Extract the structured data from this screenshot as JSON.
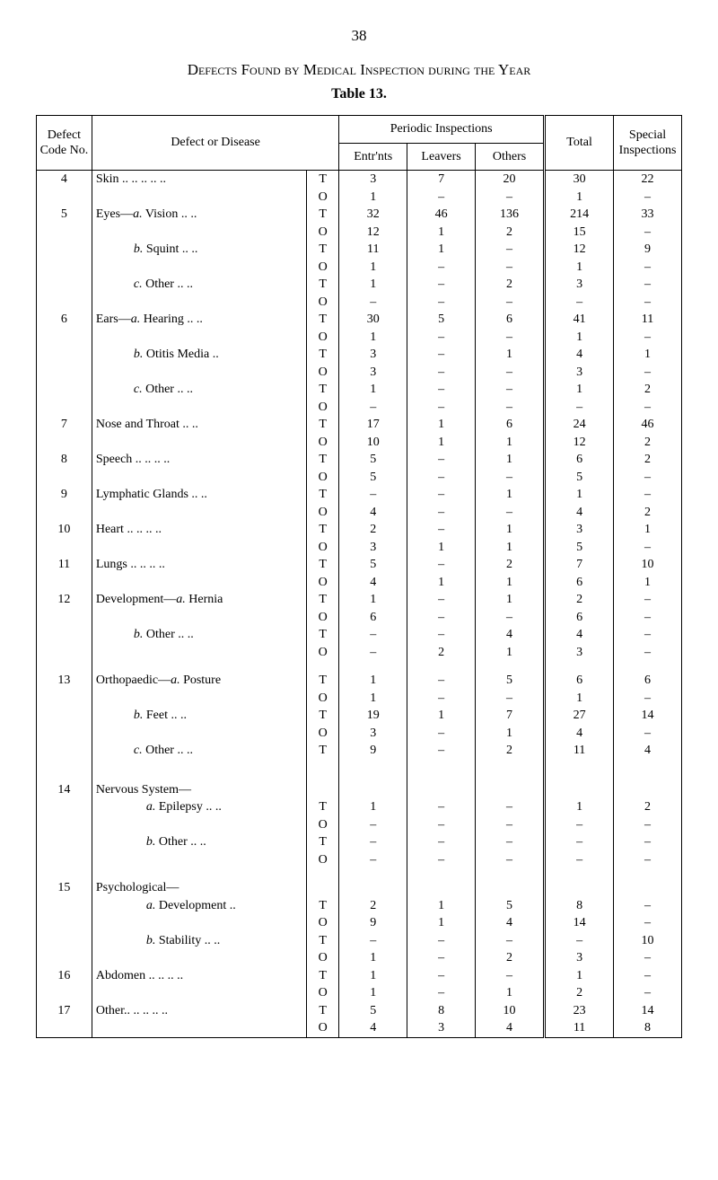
{
  "page_number": "38",
  "title": "Defects Found by Medical Inspection during the Year",
  "table_label": "Table 13.",
  "headers": {
    "code": "Defect Code No.",
    "disease": "Defect or Disease",
    "periodic": "Periodic Inspections",
    "entrnts": "Entr'nts",
    "leavers": "Leavers",
    "others": "Others",
    "total": "Total",
    "special": "Special Inspec­tions"
  },
  "rows": [
    {
      "code": "4",
      "label": "Skin ..  ..  ..  ..  ..",
      "to": "T",
      "e": "3",
      "l": "7",
      "o": "20",
      "t": "30",
      "s": "22"
    },
    {
      "code": "",
      "label": "",
      "to": "O",
      "e": "1",
      "l": "–",
      "o": "–",
      "t": "1",
      "s": "–"
    },
    {
      "code": "5",
      "label": "Eyes—a.  Vision    ..  ..",
      "to": "T",
      "e": "32",
      "l": "46",
      "o": "136",
      "t": "214",
      "s": "33",
      "ital_a": true
    },
    {
      "code": "",
      "label": "",
      "to": "O",
      "e": "12",
      "l": "1",
      "o": "2",
      "t": "15",
      "s": "–"
    },
    {
      "code": "",
      "label": "b.  Squint    ..   ..",
      "indent": 1,
      "to": "T",
      "e": "11",
      "l": "1",
      "o": "–",
      "t": "12",
      "s": "9",
      "ital_b": true
    },
    {
      "code": "",
      "label": "",
      "to": "O",
      "e": "1",
      "l": "–",
      "o": "–",
      "t": "1",
      "s": "–"
    },
    {
      "code": "",
      "label": "c.  Other     ..   ..",
      "indent": 1,
      "to": "T",
      "e": "1",
      "l": "–",
      "o": "2",
      "t": "3",
      "s": "–",
      "ital_c": true
    },
    {
      "code": "",
      "label": "",
      "to": "O",
      "e": "–",
      "l": "–",
      "o": "–",
      "t": "–",
      "s": "–"
    },
    {
      "code": "6",
      "label": "Ears—a.   Hearing ..   ..",
      "to": "T",
      "e": "30",
      "l": "5",
      "o": "6",
      "t": "41",
      "s": "11",
      "ital_a": true
    },
    {
      "code": "",
      "label": "",
      "to": "O",
      "e": "1",
      "l": "–",
      "o": "–",
      "t": "1",
      "s": "–"
    },
    {
      "code": "",
      "label": "b.  Otitis Media  ..",
      "indent": 1,
      "to": "T",
      "e": "3",
      "l": "–",
      "o": "1",
      "t": "4",
      "s": "1",
      "ital_b": true
    },
    {
      "code": "",
      "label": "",
      "to": "O",
      "e": "3",
      "l": "–",
      "o": "–",
      "t": "3",
      "s": "–"
    },
    {
      "code": "",
      "label": "c.  Other     ..   ..",
      "indent": 1,
      "to": "T",
      "e": "1",
      "l": "–",
      "o": "–",
      "t": "1",
      "s": "2",
      "ital_c": true
    },
    {
      "code": "",
      "label": "",
      "to": "O",
      "e": "–",
      "l": "–",
      "o": "–",
      "t": "–",
      "s": "–"
    },
    {
      "code": "7",
      "label": "Nose and Throat  ..   ..",
      "to": "T",
      "e": "17",
      "l": "1",
      "o": "6",
      "t": "24",
      "s": "46"
    },
    {
      "code": "",
      "label": "",
      "to": "O",
      "e": "10",
      "l": "1",
      "o": "1",
      "t": "12",
      "s": "2"
    },
    {
      "code": "8",
      "label": "Speech    ..  ..  ..   ..",
      "to": "T",
      "e": "5",
      "l": "–",
      "o": "1",
      "t": "6",
      "s": "2"
    },
    {
      "code": "",
      "label": "",
      "to": "O",
      "e": "5",
      "l": "–",
      "o": "–",
      "t": "5",
      "s": "–"
    },
    {
      "code": "9",
      "label": "Lymphatic Glands ..   ..",
      "to": "T",
      "e": "–",
      "l": "–",
      "o": "1",
      "t": "1",
      "s": "–"
    },
    {
      "code": "",
      "label": "",
      "to": "O",
      "e": "4",
      "l": "–",
      "o": "–",
      "t": "4",
      "s": "2"
    },
    {
      "code": "10",
      "label": "Heart      ..   ..  ..   ..",
      "to": "T",
      "e": "2",
      "l": "–",
      "o": "1",
      "t": "3",
      "s": "1"
    },
    {
      "code": "",
      "label": "",
      "to": "O",
      "e": "3",
      "l": "1",
      "o": "1",
      "t": "5",
      "s": "–"
    },
    {
      "code": "11",
      "label": "Lungs     ..  ..  ..   ..",
      "to": "T",
      "e": "5",
      "l": "–",
      "o": "2",
      "t": "7",
      "s": "10"
    },
    {
      "code": "",
      "label": "",
      "to": "O",
      "e": "4",
      "l": "1",
      "o": "1",
      "t": "6",
      "s": "1"
    },
    {
      "code": "12",
      "label": "Development—a. Hernia",
      "to": "T",
      "e": "1",
      "l": "–",
      "o": "1",
      "t": "2",
      "s": "–",
      "ital_a": true
    },
    {
      "code": "",
      "label": "",
      "to": "O",
      "e": "6",
      "l": "–",
      "o": "–",
      "t": "6",
      "s": "–"
    },
    {
      "code": "",
      "label": "b.  Other    ..   ..",
      "indent": 1,
      "to": "T",
      "e": "–",
      "l": "–",
      "o": "4",
      "t": "4",
      "s": "–",
      "ital_b": true
    },
    {
      "code": "",
      "label": "",
      "to": "O",
      "e": "–",
      "l": "2",
      "o": "1",
      "t": "3",
      "s": "–"
    },
    {
      "spacer": true
    },
    {
      "code": "13",
      "label": "Orthopaedic—a. Posture",
      "to": "T",
      "e": "1",
      "l": "–",
      "o": "5",
      "t": "6",
      "s": "6",
      "ital_a": true
    },
    {
      "code": "",
      "label": "",
      "to": "O",
      "e": "1",
      "l": "–",
      "o": "–",
      "t": "1",
      "s": "–"
    },
    {
      "code": "",
      "label": "b.  Feet       ..   ..",
      "indent": 1,
      "to": "T",
      "e": "19",
      "l": "1",
      "o": "7",
      "t": "27",
      "s": "14",
      "ital_b": true
    },
    {
      "code": "",
      "label": "",
      "to": "O",
      "e": "3",
      "l": "–",
      "o": "1",
      "t": "4",
      "s": "–"
    },
    {
      "code": "",
      "label": "c.  Other     ..   ..",
      "indent": 1,
      "to": "T",
      "e": "9",
      "l": "–",
      "o": "2",
      "t": "11",
      "s": "4",
      "ital_c": true
    },
    {
      "spacer": true
    },
    {
      "spacer": true
    },
    {
      "code": "14",
      "label": "Nervous System—",
      "to": "",
      "e": "",
      "l": "",
      "o": "",
      "t": "",
      "s": ""
    },
    {
      "code": "",
      "label": "a.  Epilepsy ..   ..",
      "indent": 2,
      "to": "T",
      "e": "1",
      "l": "–",
      "o": "–",
      "t": "1",
      "s": "2",
      "ital_a": true
    },
    {
      "code": "",
      "label": "",
      "to": "O",
      "e": "–",
      "l": "–",
      "o": "–",
      "t": "–",
      "s": "–"
    },
    {
      "code": "",
      "label": "b.  Other     ..   ..",
      "indent": 2,
      "to": "T",
      "e": "–",
      "l": "–",
      "o": "–",
      "t": "–",
      "s": "–",
      "ital_b": true
    },
    {
      "code": "",
      "label": "",
      "to": "O",
      "e": "–",
      "l": "–",
      "o": "–",
      "t": "–",
      "s": "–"
    },
    {
      "spacer": true
    },
    {
      "code": "15",
      "label": "Psychological—",
      "to": "",
      "e": "",
      "l": "",
      "o": "",
      "t": "",
      "s": ""
    },
    {
      "code": "",
      "label": "a.  Development ..",
      "indent": 2,
      "to": "T",
      "e": "2",
      "l": "1",
      "o": "5",
      "t": "8",
      "s": "–",
      "ital_a": true
    },
    {
      "code": "",
      "label": "",
      "to": "O",
      "e": "9",
      "l": "1",
      "o": "4",
      "t": "14",
      "s": "–"
    },
    {
      "code": "",
      "label": "b.  Stability ..   ..",
      "indent": 2,
      "to": "T",
      "e": "–",
      "l": "–",
      "o": "–",
      "t": "–",
      "s": "10",
      "ital_b": true
    },
    {
      "code": "",
      "label": "",
      "to": "O",
      "e": "1",
      "l": "–",
      "o": "2",
      "t": "3",
      "s": "–"
    },
    {
      "code": "16",
      "label": "Abdomen ..   ..   ..   ..",
      "to": "T",
      "e": "1",
      "l": "–",
      "o": "–",
      "t": "1",
      "s": "–"
    },
    {
      "code": "",
      "label": "",
      "to": "O",
      "e": "1",
      "l": "–",
      "o": "1",
      "t": "2",
      "s": "–"
    },
    {
      "code": "17",
      "label": "Other..   ..   ..   ..   ..",
      "to": "T",
      "e": "5",
      "l": "8",
      "o": "10",
      "t": "23",
      "s": "14"
    },
    {
      "code": "",
      "label": "",
      "to": "O",
      "e": "4",
      "l": "3",
      "o": "4",
      "t": "11",
      "s": "8",
      "last": true
    }
  ]
}
